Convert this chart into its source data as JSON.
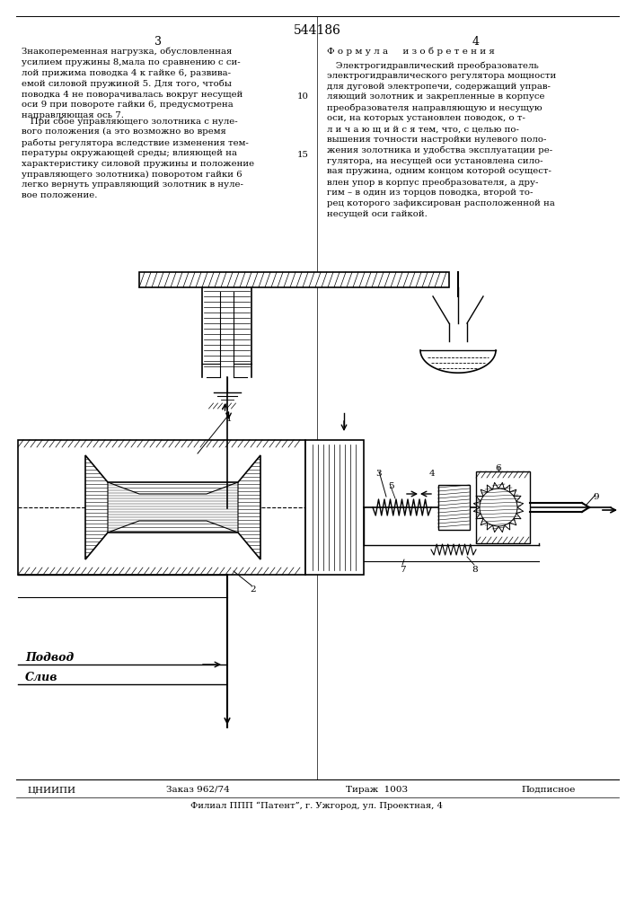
{
  "title": "544186",
  "page_left": "3",
  "page_right": "4",
  "col_right_heading": "Ф о р м у л а     и з о б р е т е н и я",
  "footer_org": "ЦНИИПИ",
  "footer_order": "Заказ 962/74",
  "footer_print": "Тираж  1003",
  "footer_type": "Подписное",
  "footer_address": "Филиал ППП “Патент”, г. Ужгород, ул. Проектная, 4",
  "label_podvod": "Подвод",
  "label_sliv": "Слив",
  "bg_color": "#ffffff",
  "text_color": "#000000"
}
